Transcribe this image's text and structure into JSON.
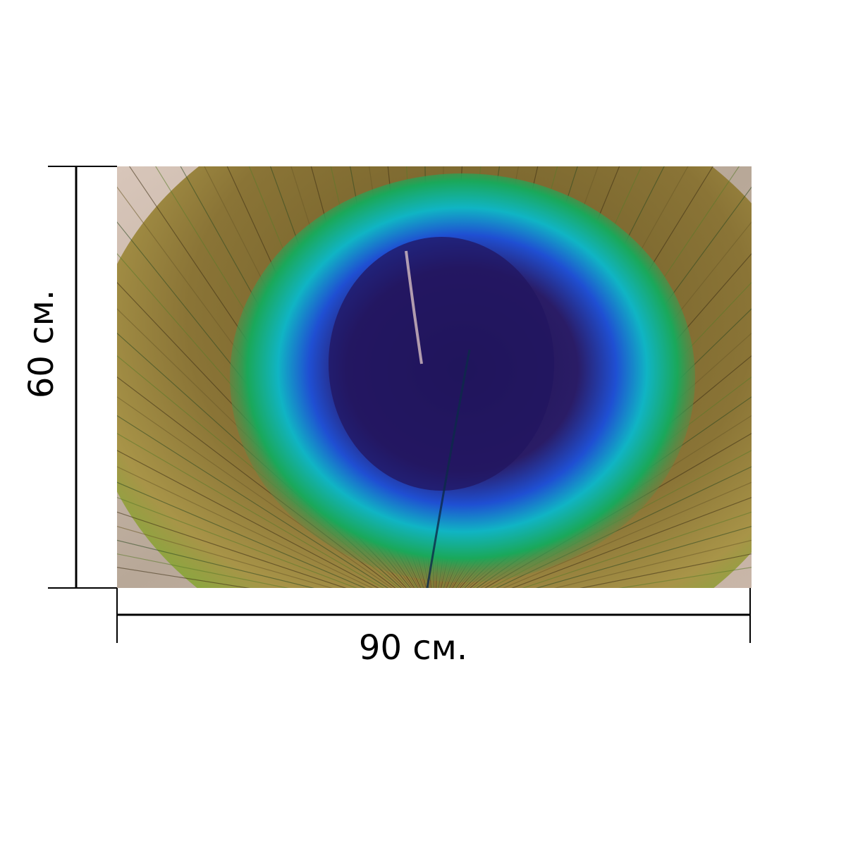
{
  "dimensions": {
    "width_label": "90 см.",
    "height_label": "60 см.",
    "line_color": "#000000"
  },
  "photo": {
    "subject": "peacock-feather-eye",
    "colors": {
      "background": "#c9b6a8",
      "outer_bronze": "#8a7436",
      "green_ring": "#18a860",
      "turquoise_ring": "#10b8b8",
      "blue_ring": "#1d4fd0",
      "center_dark": "#281a5e",
      "barb_green": "#4c8a3a"
    }
  }
}
